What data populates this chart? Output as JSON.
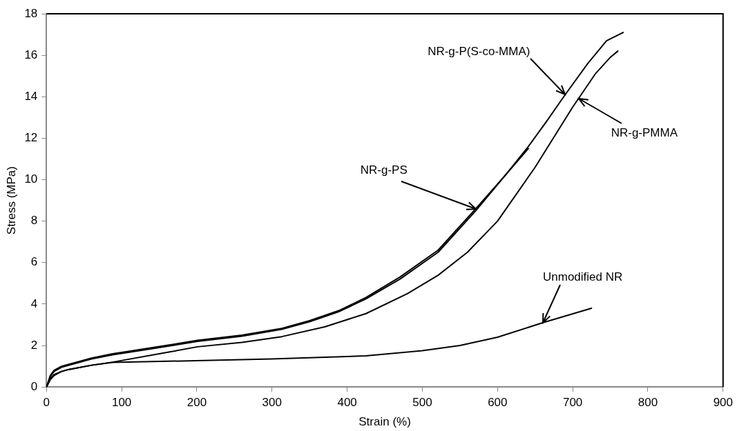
{
  "chart_data": {
    "type": "line",
    "xlabel": "Strain (%)",
    "ylabel": "Stress (MPa)",
    "xlim": [
      0,
      900
    ],
    "xticks": [
      0,
      100,
      200,
      300,
      400,
      500,
      600,
      700,
      800,
      900
    ],
    "ylim": [
      0,
      18
    ],
    "yticks": [
      0,
      2,
      4,
      6,
      8,
      10,
      12,
      14,
      16,
      18
    ],
    "grid": false,
    "legend": false,
    "marker": "none",
    "line_style": "solid",
    "series": [
      {
        "color": "#000000",
        "x": [
          0,
          5,
          10,
          20,
          30,
          45,
          60,
          88,
          150,
          201,
          260,
          313,
          350,
          390,
          425,
          470,
          521,
          571,
          610,
          641
        ],
        "values": [
          0,
          0.55,
          0.8,
          1.0,
          1.1,
          1.25,
          1.4,
          1.6,
          1.95,
          2.25,
          2.5,
          2.83,
          3.2,
          3.7,
          4.32,
          5.3,
          6.6,
          8.6,
          10.2,
          11.5
        ]
      },
      {
        "color": "#000000",
        "x": [
          0,
          5,
          10,
          20,
          30,
          45,
          60,
          88,
          150,
          201,
          260,
          313,
          350,
          390,
          425,
          470,
          521,
          571,
          610,
          641,
          665,
          690,
          720,
          745,
          767
        ],
        "values": [
          0,
          0.5,
          0.75,
          0.95,
          1.05,
          1.2,
          1.35,
          1.55,
          1.9,
          2.2,
          2.45,
          2.78,
          3.15,
          3.65,
          4.25,
          5.2,
          6.5,
          8.5,
          10.2,
          11.6,
          12.8,
          14.1,
          15.6,
          16.7,
          17.1
        ]
      },
      {
        "color": "#000000",
        "x": [
          0,
          5,
          10,
          20,
          30,
          60,
          88,
          150,
          201,
          260,
          313,
          370,
          425,
          480,
          521,
          560,
          600,
          650,
          700,
          730,
          750,
          760
        ],
        "values": [
          0,
          0.4,
          0.6,
          0.75,
          0.85,
          1.05,
          1.2,
          1.6,
          1.94,
          2.15,
          2.43,
          2.9,
          3.54,
          4.5,
          5.39,
          6.5,
          8.0,
          10.6,
          13.5,
          15.1,
          15.9,
          16.2
        ]
      },
      {
        "color": "#000000",
        "x": [
          0,
          5,
          10,
          20,
          30,
          60,
          88,
          200,
          300,
          425,
          500,
          550,
          600,
          660,
          725
        ],
        "values": [
          0,
          0.35,
          0.55,
          0.75,
          0.85,
          1.05,
          1.19,
          1.27,
          1.35,
          1.5,
          1.75,
          2.0,
          2.4,
          3.1,
          3.8
        ]
      }
    ],
    "annotations": [
      {
        "text": "NR-g-P(S-co-MMA)",
        "x": 690,
        "y": 14.1
      },
      {
        "text": "NR-g-PS",
        "x": 571,
        "y": 8.6
      },
      {
        "text": "NR-g-PMMA",
        "x": 708,
        "y": 13.9
      },
      {
        "text": "Unmodified NR",
        "x": 660,
        "y": 3.1
      }
    ]
  }
}
